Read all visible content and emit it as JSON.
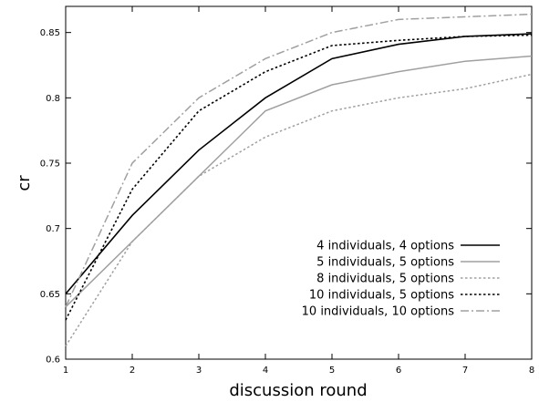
{
  "chart_data": {
    "type": "line",
    "title": "",
    "xlabel": "discussion round",
    "ylabel": "cr",
    "x": [
      1,
      2,
      3,
      4,
      5,
      6,
      7,
      8
    ],
    "xlim": [
      1,
      8
    ],
    "ylim": [
      0.6,
      0.87
    ],
    "xticks": [
      "1",
      "2",
      "3",
      "4",
      "5",
      "6",
      "7",
      "8"
    ],
    "yticks": [
      {
        "value": 0.6,
        "label": "0.6"
      },
      {
        "value": 0.65,
        "label": "0.65"
      },
      {
        "value": 0.7,
        "label": "0.7"
      },
      {
        "value": 0.75,
        "label": "0.75"
      },
      {
        "value": 0.8,
        "label": "0.8"
      },
      {
        "value": 0.85,
        "label": "0.85"
      }
    ],
    "grid": false,
    "legend_position": "bottom-right",
    "series": [
      {
        "name": "4 individuals, 4 options",
        "color": "#000000",
        "style": "solid",
        "values": [
          0.65,
          0.71,
          0.76,
          0.8,
          0.83,
          0.841,
          0.847,
          0.849
        ]
      },
      {
        "name": "5 individuals, 5 options",
        "color": "#a0a0a0",
        "style": "solid",
        "values": [
          0.64,
          0.69,
          0.74,
          0.79,
          0.81,
          0.82,
          0.828,
          0.832
        ]
      },
      {
        "name": "8 individuals, 5 options",
        "color": "#a0a0a0",
        "style": "dotted",
        "values": [
          0.61,
          0.69,
          0.74,
          0.77,
          0.79,
          0.8,
          0.807,
          0.818
        ]
      },
      {
        "name": "10 individuals, 5 options",
        "color": "#000000",
        "style": "dotted",
        "values": [
          0.63,
          0.73,
          0.79,
          0.82,
          0.84,
          0.844,
          0.847,
          0.848
        ]
      },
      {
        "name": "10 individuals, 10 options",
        "color": "#a0a0a0",
        "style": "dashdot",
        "values": [
          0.64,
          0.75,
          0.8,
          0.83,
          0.85,
          0.86,
          0.862,
          0.864
        ]
      }
    ]
  }
}
